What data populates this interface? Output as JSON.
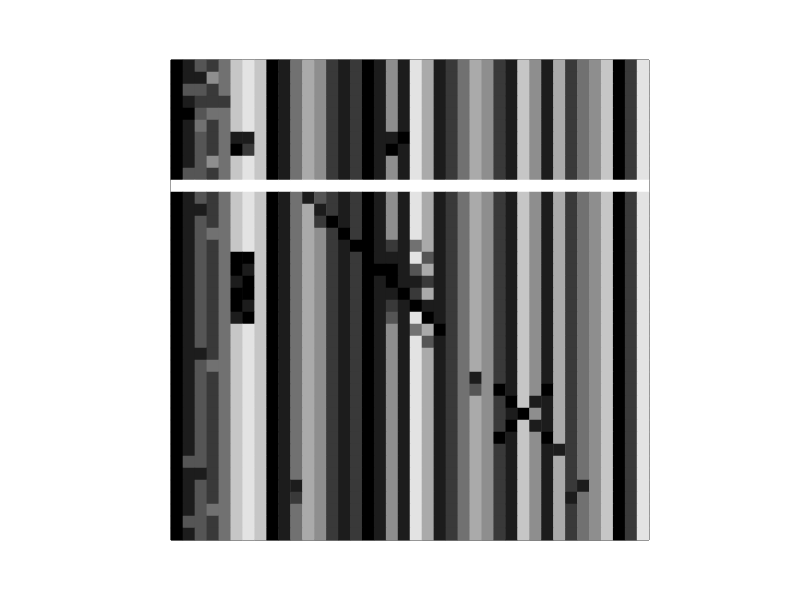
{
  "chart_data": {
    "type": "heatmap",
    "tick_labels": false,
    "color_range": [
      0,
      9
    ],
    "cells": [
      [
        9,
        8,
        6,
        7,
        5,
        2,
        1,
        2,
        9,
        8,
        5,
        3,
        4,
        7,
        8,
        7,
        9,
        8,
        4,
        8,
        1,
        3,
        8,
        7,
        5,
        3,
        4,
        7,
        8,
        2,
        4,
        8,
        3,
        7,
        5,
        4,
        2,
        9,
        7,
        1
      ],
      [
        9,
        8,
        8,
        4,
        5,
        2,
        1,
        2,
        9,
        8,
        5,
        3,
        4,
        7,
        8,
        7,
        9,
        8,
        4,
        8,
        1,
        3,
        8,
        7,
        5,
        3,
        4,
        7,
        8,
        2,
        4,
        8,
        3,
        7,
        5,
        4,
        2,
        9,
        7,
        1
      ],
      [
        9,
        6,
        6,
        7,
        5,
        2,
        1,
        2,
        9,
        8,
        5,
        3,
        4,
        7,
        8,
        7,
        9,
        8,
        4,
        8,
        1,
        3,
        8,
        7,
        5,
        3,
        4,
        7,
        8,
        2,
        4,
        8,
        3,
        7,
        5,
        4,
        2,
        9,
        7,
        1
      ],
      [
        9,
        8,
        7,
        7,
        7,
        2,
        1,
        2,
        9,
        8,
        5,
        3,
        4,
        7,
        8,
        7,
        9,
        8,
        4,
        8,
        1,
        3,
        8,
        7,
        5,
        3,
        4,
        7,
        8,
        2,
        4,
        8,
        3,
        7,
        5,
        4,
        2,
        9,
        7,
        1
      ],
      [
        9,
        9,
        6,
        5,
        5,
        2,
        1,
        2,
        9,
        8,
        5,
        3,
        4,
        7,
        8,
        7,
        9,
        8,
        4,
        8,
        1,
        3,
        8,
        7,
        5,
        3,
        4,
        7,
        8,
        2,
        4,
        8,
        3,
        7,
        5,
        4,
        2,
        9,
        7,
        1
      ],
      [
        9,
        8,
        5,
        7,
        5,
        2,
        1,
        2,
        9,
        8,
        5,
        3,
        4,
        7,
        8,
        7,
        9,
        8,
        4,
        8,
        1,
        3,
        8,
        7,
        5,
        3,
        4,
        7,
        8,
        2,
        4,
        8,
        3,
        7,
        5,
        4,
        2,
        9,
        7,
        1
      ],
      [
        9,
        8,
        6,
        7,
        5,
        8,
        8,
        2,
        9,
        8,
        5,
        3,
        4,
        7,
        8,
        7,
        9,
        8,
        8,
        9,
        1,
        3,
        8,
        7,
        5,
        3,
        4,
        7,
        8,
        2,
        4,
        8,
        3,
        7,
        5,
        4,
        2,
        9,
        7,
        1
      ],
      [
        9,
        8,
        6,
        7,
        5,
        9,
        7,
        2,
        9,
        8,
        5,
        3,
        4,
        7,
        8,
        7,
        9,
        8,
        9,
        8,
        1,
        3,
        8,
        7,
        5,
        3,
        4,
        7,
        8,
        2,
        4,
        8,
        3,
        7,
        5,
        4,
        2,
        9,
        7,
        1
      ],
      [
        9,
        8,
        6,
        4,
        5,
        2,
        1,
        2,
        9,
        8,
        5,
        3,
        4,
        7,
        8,
        7,
        9,
        8,
        4,
        8,
        1,
        3,
        8,
        7,
        5,
        3,
        4,
        7,
        8,
        2,
        4,
        8,
        3,
        7,
        5,
        4,
        2,
        9,
        7,
        1
      ],
      [
        9,
        6,
        6,
        7,
        5,
        2,
        1,
        2,
        9,
        8,
        5,
        3,
        4,
        7,
        8,
        7,
        9,
        8,
        4,
        8,
        1,
        3,
        8,
        7,
        5,
        3,
        4,
        7,
        8,
        2,
        4,
        8,
        3,
        7,
        5,
        4,
        2,
        9,
        7,
        1
      ],
      [
        0,
        0,
        0,
        0,
        0,
        0,
        0,
        0,
        0,
        0,
        0,
        0,
        0,
        0,
        0,
        0,
        0,
        0,
        0,
        0,
        0,
        0,
        0,
        0,
        0,
        0,
        0,
        0,
        0,
        0,
        0,
        0,
        0,
        0,
        0,
        0,
        0,
        0,
        0,
        0
      ],
      [
        9,
        8,
        6,
        7,
        5,
        2,
        1,
        2,
        9,
        8,
        5,
        8,
        6,
        7,
        8,
        7,
        9,
        8,
        4,
        8,
        1,
        3,
        8,
        7,
        5,
        3,
        4,
        7,
        8,
        2,
        4,
        8,
        3,
        7,
        5,
        4,
        2,
        9,
        7,
        1
      ],
      [
        9,
        8,
        8,
        7,
        5,
        2,
        1,
        2,
        9,
        8,
        5,
        3,
        8,
        7,
        8,
        7,
        9,
        8,
        4,
        8,
        1,
        3,
        8,
        7,
        5,
        3,
        4,
        7,
        8,
        2,
        4,
        8,
        3,
        7,
        5,
        4,
        2,
        9,
        7,
        1
      ],
      [
        9,
        8,
        6,
        7,
        5,
        2,
        1,
        2,
        9,
        8,
        5,
        3,
        7,
        9,
        8,
        7,
        9,
        8,
        4,
        8,
        1,
        3,
        8,
        7,
        5,
        3,
        4,
        7,
        8,
        2,
        4,
        8,
        3,
        7,
        5,
        4,
        2,
        9,
        7,
        1
      ],
      [
        9,
        8,
        6,
        5,
        5,
        2,
        1,
        2,
        9,
        8,
        5,
        3,
        4,
        7,
        9,
        7,
        9,
        8,
        4,
        8,
        1,
        3,
        8,
        7,
        5,
        3,
        4,
        7,
        8,
        2,
        4,
        8,
        3,
        7,
        5,
        4,
        2,
        9,
        7,
        1
      ],
      [
        9,
        8,
        6,
        7,
        5,
        2,
        1,
        2,
        9,
        8,
        5,
        3,
        4,
        7,
        8,
        9,
        9,
        8,
        7,
        8,
        5,
        3,
        8,
        7,
        5,
        3,
        4,
        7,
        8,
        2,
        4,
        8,
        3,
        7,
        5,
        4,
        2,
        9,
        7,
        1
      ],
      [
        9,
        8,
        6,
        7,
        5,
        9,
        9,
        2,
        9,
        8,
        5,
        3,
        4,
        7,
        8,
        7,
        9,
        8,
        8,
        8,
        1,
        6,
        8,
        7,
        5,
        3,
        4,
        7,
        8,
        2,
        4,
        8,
        3,
        7,
        5,
        4,
        2,
        9,
        7,
        1
      ],
      [
        9,
        8,
        6,
        7,
        5,
        9,
        8,
        2,
        9,
        8,
        5,
        3,
        4,
        7,
        8,
        7,
        9,
        9,
        9,
        8,
        6,
        3,
        8,
        7,
        5,
        3,
        4,
        7,
        8,
        2,
        4,
        8,
        3,
        7,
        5,
        4,
        2,
        9,
        7,
        1
      ],
      [
        9,
        8,
        6,
        7,
        5,
        8,
        9,
        2,
        9,
        8,
        5,
        3,
        4,
        7,
        8,
        7,
        9,
        8,
        9,
        8,
        8,
        7,
        8,
        7,
        5,
        3,
        4,
        7,
        8,
        2,
        4,
        8,
        3,
        7,
        5,
        4,
        2,
        9,
        7,
        1
      ],
      [
        9,
        8,
        6,
        7,
        5,
        9,
        9,
        2,
        9,
        8,
        5,
        3,
        4,
        7,
        8,
        7,
        9,
        8,
        8,
        9,
        7,
        3,
        8,
        7,
        5,
        3,
        4,
        7,
        8,
        2,
        4,
        8,
        3,
        7,
        5,
        4,
        2,
        9,
        7,
        1
      ],
      [
        9,
        8,
        6,
        7,
        5,
        9,
        8,
        2,
        9,
        8,
        5,
        3,
        4,
        7,
        8,
        7,
        9,
        8,
        7,
        8,
        9,
        8,
        8,
        7,
        5,
        3,
        4,
        7,
        8,
        2,
        4,
        8,
        3,
        7,
        5,
        4,
        2,
        9,
        7,
        1
      ],
      [
        9,
        8,
        6,
        7,
        5,
        8,
        9,
        2,
        9,
        8,
        5,
        3,
        4,
        7,
        8,
        7,
        9,
        8,
        6,
        8,
        1,
        9,
        8,
        7,
        5,
        3,
        4,
        7,
        8,
        2,
        4,
        8,
        3,
        7,
        5,
        4,
        2,
        9,
        7,
        1
      ],
      [
        9,
        8,
        6,
        7,
        5,
        2,
        1,
        2,
        9,
        8,
        5,
        3,
        4,
        7,
        8,
        7,
        9,
        8,
        4,
        8,
        5,
        3,
        9,
        7,
        5,
        3,
        4,
        7,
        8,
        2,
        4,
        8,
        3,
        7,
        5,
        4,
        2,
        9,
        7,
        1
      ],
      [
        9,
        8,
        6,
        7,
        5,
        2,
        1,
        2,
        9,
        8,
        5,
        3,
        4,
        7,
        8,
        7,
        9,
        8,
        4,
        8,
        1,
        6,
        8,
        7,
        5,
        3,
        4,
        7,
        8,
        2,
        4,
        8,
        3,
        7,
        5,
        4,
        2,
        9,
        7,
        1
      ],
      [
        9,
        8,
        8,
        7,
        5,
        2,
        1,
        2,
        9,
        8,
        5,
        3,
        4,
        7,
        8,
        7,
        9,
        8,
        4,
        8,
        1,
        3,
        8,
        7,
        5,
        3,
        4,
        7,
        8,
        2,
        4,
        8,
        3,
        7,
        5,
        4,
        2,
        9,
        7,
        1
      ],
      [
        9,
        8,
        6,
        5,
        5,
        2,
        1,
        2,
        9,
        8,
        5,
        3,
        4,
        7,
        8,
        7,
        9,
        8,
        4,
        8,
        1,
        3,
        8,
        7,
        5,
        3,
        4,
        7,
        8,
        2,
        4,
        8,
        3,
        7,
        5,
        4,
        2,
        9,
        7,
        1
      ],
      [
        9,
        8,
        6,
        7,
        5,
        2,
        1,
        2,
        9,
        8,
        5,
        3,
        4,
        7,
        8,
        7,
        9,
        8,
        4,
        8,
        1,
        3,
        8,
        7,
        5,
        8,
        4,
        7,
        8,
        2,
        4,
        8,
        3,
        7,
        5,
        4,
        2,
        9,
        7,
        1
      ],
      [
        9,
        8,
        6,
        7,
        5,
        2,
        1,
        2,
        9,
        8,
        5,
        3,
        4,
        7,
        8,
        7,
        9,
        8,
        4,
        8,
        1,
        3,
        8,
        7,
        5,
        6,
        4,
        9,
        8,
        2,
        4,
        9,
        3,
        7,
        5,
        4,
        2,
        9,
        7,
        1
      ],
      [
        9,
        8,
        6,
        7,
        5,
        2,
        1,
        2,
        9,
        8,
        5,
        3,
        4,
        7,
        8,
        7,
        9,
        8,
        4,
        8,
        1,
        3,
        8,
        7,
        5,
        3,
        4,
        7,
        9,
        2,
        8,
        8,
        3,
        7,
        5,
        4,
        2,
        9,
        7,
        1
      ],
      [
        9,
        8,
        6,
        7,
        5,
        2,
        1,
        2,
        9,
        8,
        5,
        3,
        4,
        7,
        8,
        7,
        9,
        8,
        4,
        8,
        1,
        3,
        8,
        7,
        5,
        3,
        4,
        7,
        8,
        9,
        4,
        8,
        3,
        7,
        5,
        4,
        2,
        9,
        7,
        1
      ],
      [
        9,
        8,
        6,
        7,
        5,
        2,
        1,
        2,
        9,
        8,
        5,
        3,
        4,
        7,
        8,
        7,
        9,
        8,
        4,
        8,
        1,
        3,
        8,
        7,
        5,
        3,
        4,
        7,
        9,
        2,
        8,
        8,
        3,
        7,
        5,
        4,
        2,
        9,
        7,
        1
      ],
      [
        9,
        8,
        6,
        7,
        5,
        2,
        1,
        2,
        9,
        8,
        5,
        3,
        4,
        7,
        8,
        7,
        9,
        8,
        4,
        8,
        1,
        3,
        8,
        7,
        5,
        3,
        4,
        9,
        8,
        2,
        4,
        9,
        3,
        7,
        5,
        4,
        2,
        9,
        7,
        1
      ],
      [
        9,
        8,
        6,
        7,
        5,
        2,
        1,
        2,
        9,
        8,
        5,
        3,
        4,
        7,
        8,
        7,
        9,
        8,
        4,
        8,
        1,
        3,
        8,
        7,
        5,
        3,
        4,
        7,
        8,
        2,
        4,
        8,
        8,
        7,
        5,
        4,
        2,
        9,
        7,
        1
      ],
      [
        9,
        6,
        6,
        7,
        5,
        2,
        1,
        2,
        9,
        8,
        5,
        3,
        4,
        7,
        8,
        7,
        9,
        8,
        4,
        8,
        1,
        3,
        8,
        7,
        5,
        3,
        4,
        7,
        8,
        2,
        4,
        8,
        3,
        7,
        5,
        4,
        2,
        9,
        7,
        1
      ],
      [
        9,
        8,
        8,
        7,
        5,
        2,
        1,
        2,
        9,
        8,
        5,
        3,
        4,
        7,
        8,
        7,
        9,
        8,
        4,
        8,
        1,
        3,
        8,
        7,
        5,
        3,
        4,
        7,
        8,
        2,
        4,
        8,
        3,
        7,
        5,
        4,
        2,
        9,
        7,
        1
      ],
      [
        9,
        8,
        6,
        7,
        5,
        2,
        1,
        2,
        9,
        8,
        8,
        3,
        4,
        7,
        8,
        7,
        9,
        8,
        4,
        8,
        1,
        3,
        8,
        7,
        5,
        3,
        4,
        7,
        8,
        2,
        4,
        8,
        3,
        7,
        8,
        4,
        2,
        9,
        7,
        1
      ],
      [
        9,
        8,
        6,
        7,
        5,
        2,
        1,
        2,
        9,
        8,
        7,
        3,
        4,
        7,
        8,
        7,
        9,
        8,
        4,
        8,
        1,
        3,
        8,
        7,
        5,
        3,
        4,
        7,
        8,
        2,
        4,
        8,
        3,
        8,
        5,
        4,
        2,
        9,
        7,
        1
      ],
      [
        9,
        8,
        6,
        5,
        5,
        2,
        1,
        2,
        9,
        8,
        5,
        3,
        4,
        7,
        8,
        7,
        9,
        8,
        4,
        8,
        1,
        3,
        8,
        7,
        5,
        3,
        4,
        7,
        8,
        2,
        4,
        8,
        3,
        7,
        5,
        4,
        2,
        9,
        7,
        1
      ],
      [
        9,
        6,
        6,
        7,
        5,
        2,
        1,
        2,
        9,
        8,
        5,
        3,
        4,
        7,
        8,
        7,
        9,
        8,
        4,
        8,
        1,
        3,
        8,
        7,
        5,
        3,
        4,
        7,
        8,
        2,
        4,
        8,
        3,
        7,
        5,
        4,
        2,
        9,
        7,
        1
      ],
      [
        9,
        8,
        6,
        7,
        5,
        2,
        1,
        2,
        9,
        8,
        5,
        3,
        4,
        7,
        8,
        7,
        9,
        8,
        4,
        8,
        1,
        3,
        8,
        7,
        5,
        3,
        4,
        7,
        8,
        2,
        4,
        8,
        3,
        7,
        5,
        4,
        2,
        9,
        7,
        1
      ]
    ]
  }
}
